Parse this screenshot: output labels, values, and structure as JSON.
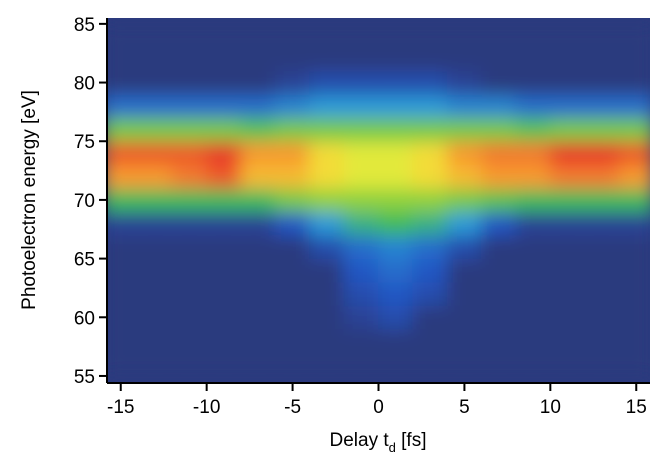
{
  "chart_data": {
    "type": "heatmap",
    "x_label": [
      "Delay t",
      "d",
      " [fs]"
    ],
    "y_label": "Photoelectron energy [eV]",
    "xlim": [
      -15.8,
      15.8
    ],
    "ylim": [
      54.4,
      85.5
    ],
    "xticks": [
      -15,
      -10,
      -5,
      0,
      5,
      10,
      15
    ],
    "yticks": [
      55,
      60,
      65,
      70,
      75,
      80,
      85
    ],
    "x": [
      -15,
      -13,
      -11,
      -9,
      -7,
      -5,
      -3,
      -1,
      1,
      3,
      5,
      7,
      9,
      11,
      13,
      15
    ],
    "y": [
      56,
      58,
      60,
      62,
      64,
      66,
      68,
      70,
      72,
      74,
      76,
      78,
      80,
      82,
      84
    ],
    "colorscale": [
      [
        0,
        "#2b3a7e"
      ],
      [
        0.15,
        "#2456c4"
      ],
      [
        0.3,
        "#2a9ad8"
      ],
      [
        0.45,
        "#3dbb5a"
      ],
      [
        0.6,
        "#8fd13c"
      ],
      [
        0.72,
        "#f2ee3a"
      ],
      [
        0.85,
        "#f79a2e"
      ],
      [
        1,
        "#e83a2a"
      ]
    ],
    "z": [
      [
        0,
        0,
        0,
        0,
        0,
        0,
        0,
        0,
        0,
        0,
        0,
        0,
        0,
        0,
        0,
        0
      ],
      [
        0,
        0,
        0,
        0,
        0,
        0,
        0,
        0,
        0,
        0,
        0,
        0,
        0,
        0,
        0,
        0
      ],
      [
        0,
        0,
        0,
        0,
        0,
        0,
        0,
        0.05,
        0.1,
        0,
        0,
        0,
        0,
        0,
        0,
        0
      ],
      [
        0,
        0,
        0,
        0,
        0,
        0,
        0,
        0.1,
        0.15,
        0.1,
        0,
        0,
        0,
        0,
        0,
        0
      ],
      [
        0,
        0,
        0,
        0,
        0,
        0,
        0,
        0.15,
        0.2,
        0.15,
        0,
        0,
        0,
        0,
        0,
        0
      ],
      [
        0,
        0,
        0,
        0,
        0,
        0,
        0.1,
        0.2,
        0.25,
        0.2,
        0.1,
        0,
        0,
        0,
        0,
        0
      ],
      [
        0.05,
        0.05,
        0.05,
        0.05,
        0.05,
        0.15,
        0.3,
        0.4,
        0.45,
        0.4,
        0.3,
        0.15,
        0.05,
        0.05,
        0.05,
        0.05
      ],
      [
        0.45,
        0.45,
        0.45,
        0.45,
        0.45,
        0.55,
        0.6,
        0.6,
        0.6,
        0.6,
        0.55,
        0.5,
        0.45,
        0.45,
        0.45,
        0.45
      ],
      [
        0.85,
        0.85,
        0.9,
        0.95,
        0.8,
        0.8,
        0.75,
        0.7,
        0.7,
        0.75,
        0.8,
        0.85,
        0.85,
        0.9,
        0.9,
        0.85
      ],
      [
        0.95,
        0.95,
        0.95,
        1,
        0.85,
        0.85,
        0.75,
        0.7,
        0.7,
        0.75,
        0.85,
        0.9,
        0.9,
        1,
        1,
        0.95
      ],
      [
        0.55,
        0.55,
        0.55,
        0.55,
        0.5,
        0.55,
        0.55,
        0.55,
        0.55,
        0.55,
        0.55,
        0.55,
        0.5,
        0.55,
        0.55,
        0.55
      ],
      [
        0.2,
        0.2,
        0.2,
        0.2,
        0.2,
        0.25,
        0.3,
        0.3,
        0.3,
        0.3,
        0.25,
        0.25,
        0.2,
        0.2,
        0.2,
        0.2
      ],
      [
        0,
        0,
        0,
        0,
        0,
        0.05,
        0.1,
        0.1,
        0.1,
        0.1,
        0.05,
        0,
        0,
        0,
        0,
        0
      ],
      [
        0,
        0,
        0,
        0,
        0,
        0,
        0,
        0,
        0,
        0,
        0,
        0,
        0,
        0,
        0,
        0
      ],
      [
        0,
        0,
        0,
        0,
        0,
        0,
        0,
        0,
        0,
        0,
        0,
        0,
        0,
        0,
        0,
        0
      ]
    ]
  }
}
